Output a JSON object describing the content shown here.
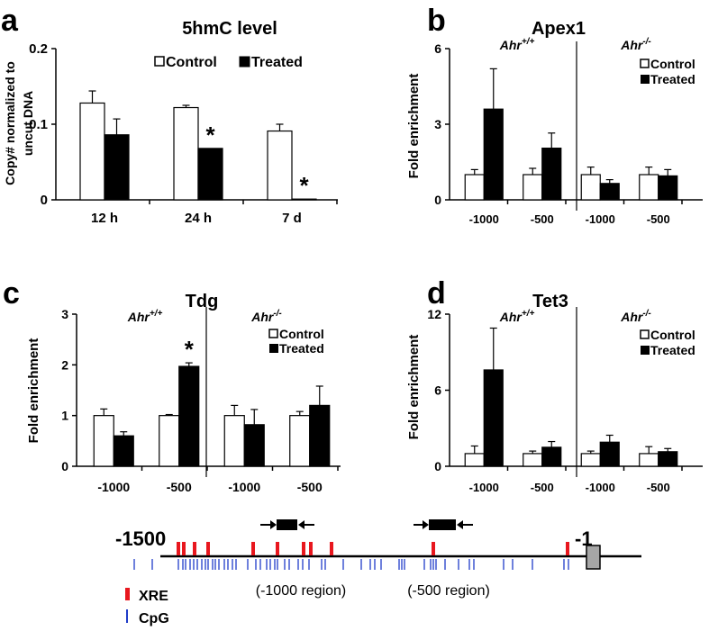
{
  "chart_data": [
    {
      "panel": "a",
      "type": "bar",
      "title": "5hmC level",
      "ylabel": "Copy# normalized to uncut DNA",
      "ylim": [
        0,
        0.2
      ],
      "yticks": [
        "0",
        "0.1",
        "0.2"
      ],
      "categories": [
        "12 h",
        "24 h",
        "7 d"
      ],
      "series": [
        {
          "name": "Control",
          "color": "#ffffff",
          "values": [
            0.128,
            0.122,
            0.091
          ],
          "errors": [
            0.016,
            0.003,
            0.009
          ]
        },
        {
          "name": "Treated",
          "color": "#000000",
          "values": [
            0.086,
            0.068,
            0.001
          ],
          "errors": [
            0.021,
            0,
            0
          ]
        }
      ],
      "annotations": [
        {
          "text": "*",
          "category": 1,
          "series": 1
        },
        {
          "text": "*",
          "category": 2,
          "series": 1
        }
      ]
    },
    {
      "panel": "b",
      "type": "bar",
      "title": "Apex1",
      "ylabel": "Fold enrichment",
      "ylim": [
        0,
        6
      ],
      "yticks": [
        "0",
        "3",
        "6"
      ],
      "groups": [
        "Ahr+/+",
        "Ahr-/-"
      ],
      "categories": [
        "-1000",
        "-500",
        "-1000",
        "-500"
      ],
      "series": [
        {
          "name": "Control",
          "color": "#ffffff",
          "values": [
            1.0,
            1.0,
            1.0,
            1.0
          ],
          "errors": [
            0.2,
            0.25,
            0.3,
            0.3
          ]
        },
        {
          "name": "Treated",
          "color": "#000000",
          "values": [
            3.6,
            2.05,
            0.65,
            0.95
          ],
          "errors": [
            1.6,
            0.6,
            0.15,
            0.25
          ]
        }
      ],
      "annotations": []
    },
    {
      "panel": "c",
      "type": "bar",
      "title": "Tdg",
      "ylabel": "Fold enrichment",
      "ylim": [
        0,
        3
      ],
      "yticks": [
        "0",
        "1",
        "2",
        "3"
      ],
      "groups": [
        "Ahr+/+",
        "Ahr-/-"
      ],
      "categories": [
        "-1000",
        "-500",
        "-1000",
        "-500"
      ],
      "series": [
        {
          "name": "Control",
          "color": "#ffffff",
          "values": [
            1.0,
            1.0,
            1.0,
            1.0
          ],
          "errors": [
            0.13,
            0.02,
            0.2,
            0.08
          ]
        },
        {
          "name": "Treated",
          "color": "#000000",
          "values": [
            0.6,
            1.97,
            0.82,
            1.2
          ],
          "errors": [
            0.08,
            0.07,
            0.3,
            0.38
          ]
        }
      ],
      "annotations": [
        {
          "text": "*",
          "category": 1,
          "series": 1
        }
      ]
    },
    {
      "panel": "d",
      "type": "bar",
      "title": "Tet3",
      "ylabel": "Fold enrichment",
      "ylim": [
        0,
        12
      ],
      "yticks": [
        "0",
        "6",
        "12"
      ],
      "groups": [
        "Ahr+/+",
        "Ahr-/-"
      ],
      "categories": [
        "-1000",
        "-500",
        "-1000",
        "-500"
      ],
      "series": [
        {
          "name": "Control",
          "color": "#ffffff",
          "values": [
            1.0,
            1.0,
            1.0,
            1.0
          ],
          "errors": [
            0.6,
            0.2,
            0.2,
            0.55
          ]
        },
        {
          "name": "Treated",
          "color": "#000000",
          "values": [
            7.6,
            1.5,
            1.9,
            1.15
          ],
          "errors": [
            3.3,
            0.45,
            0.55,
            0.25
          ]
        }
      ],
      "annotations": []
    }
  ],
  "diagram": {
    "start_label": "-1500",
    "end_label": "-1",
    "region_labels": [
      "(-1000 region)",
      "(-500 region)"
    ],
    "legend": [
      {
        "label": "XRE",
        "color": "#e8171e"
      },
      {
        "label": "CpG",
        "color": "#1f3cc8"
      }
    ],
    "gene_box_color": "#a6a6a6"
  }
}
